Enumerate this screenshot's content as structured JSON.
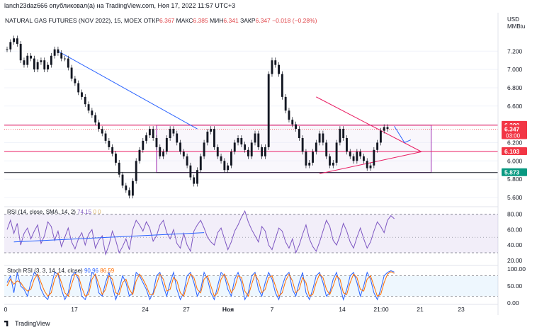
{
  "header": {
    "author_line": "lanch23daz666 опубликовал(а) на TradingView.com, Ноя 17, 2022 11:57 UTC+3"
  },
  "legend": {
    "symbol": "NATURAL GAS FUTURES (NOV 2022), 15, MOEX",
    "open_label": "ОТКР",
    "open": "6.367",
    "high_label": "МАКС",
    "high": "6.385",
    "low_label": "МИН",
    "low": "6.341",
    "close_label": "ЗАКР",
    "close": "6.347",
    "change": "−0.018 (−0.28%)"
  },
  "currency": {
    "line1": "USD",
    "line2": "MMBtu"
  },
  "rsi_legend": {
    "text": "RSI (14, close, SMA, 14, 2)",
    "v1": "74.15",
    "v2": "0",
    "v3": "0"
  },
  "stoch_legend": {
    "text": "Stoch RSI (3, 3, 14, 14, close)",
    "v1": "90.96",
    "v2": "86.59"
  },
  "footer": {
    "brand": "TradingView"
  },
  "colors": {
    "up": "#26a69a",
    "down": "#ef5350",
    "rsi": "#7e57c2",
    "k": "#2962ff",
    "d": "#ff6d00",
    "trend": "#2962ff",
    "resistance": "#e91e63"
  },
  "chart_data": [
    {
      "type": "line",
      "panel": "price",
      "title": "NATURAL GAS FUTURES (NOV 2022), 15, MOEX",
      "ylabel": "USD MMBtu",
      "y_ticks": [
        5.6,
        5.8,
        6.0,
        6.2,
        6.4,
        6.6,
        6.8,
        7.0,
        7.2
      ],
      "ylim": [
        5.53,
        7.45
      ],
      "x_ticks": [
        "0",
        "17",
        "24",
        "27",
        "Ноя",
        "7",
        "14",
        "21:00",
        "21",
        "23"
      ],
      "price_labels": [
        {
          "value": 6.39,
          "text": "6.390",
          "color": "#f23645"
        },
        {
          "value": 6.347,
          "text": "6.347",
          "sub": "03:00",
          "color": "#f23645"
        },
        {
          "value": 6.103,
          "text": "6.103",
          "color": "#f23645"
        },
        {
          "value": 5.873,
          "text": "5.873",
          "color": "#089981"
        }
      ],
      "series": [
        {
          "values": [
            7.22,
            7.3,
            7.34,
            7.28,
            7.1,
            7.05,
            7.15,
            7.12,
            7.0,
            7.08,
            7.1,
            7.0,
            7.05,
            7.15,
            7.22,
            7.18,
            7.12,
            7.12,
            7.02,
            6.9,
            6.85,
            6.75,
            6.7,
            6.62,
            6.55,
            6.5,
            6.42,
            6.35,
            6.3,
            6.22,
            6.15,
            6.08,
            5.98,
            5.85,
            5.73,
            5.68,
            5.62,
            5.78,
            6.0,
            6.12,
            6.22,
            6.28,
            6.35,
            6.25,
            6.15,
            6.05,
            6.1,
            6.25,
            6.35,
            6.3,
            6.2,
            6.1,
            6.05,
            5.95,
            5.82,
            5.75,
            5.9,
            6.05,
            6.2,
            6.32,
            6.35,
            6.15,
            6.05,
            6.0,
            5.9,
            5.95,
            6.1,
            6.2,
            6.25,
            6.18,
            6.12,
            6.05,
            6.2,
            6.3,
            6.15,
            6.05,
            6.15,
            6.95,
            7.1,
            7.05,
            6.95,
            6.7,
            6.55,
            6.45,
            6.4,
            6.35,
            6.25,
            6.1,
            5.95,
            5.98,
            6.1,
            6.2,
            6.3,
            6.2,
            6.05,
            5.95,
            5.98,
            6.2,
            6.35,
            6.25,
            6.1,
            6.05,
            6.0,
            6.1,
            6.05,
            6.0,
            5.92,
            5.95,
            6.12,
            6.2,
            6.33,
            6.37,
            6.35
          ]
        }
      ]
    },
    {
      "type": "line",
      "panel": "rsi",
      "ylim": [
        20,
        85
      ],
      "y_ticks": [
        20,
        40,
        60,
        80
      ],
      "series": [
        {
          "name": "RSI (14, close, SMA, 14, 2)",
          "values": [
            60,
            72,
            55,
            68,
            40,
            55,
            62,
            48,
            58,
            66,
            42,
            52,
            70,
            64,
            46,
            58,
            38,
            50,
            62,
            44,
            35,
            48,
            56,
            40,
            54,
            60,
            36,
            46,
            52,
            28,
            40,
            58,
            46,
            30,
            38,
            48,
            34,
            60,
            72,
            66,
            58,
            70,
            62,
            45,
            52,
            66,
            72,
            56,
            48,
            60,
            42,
            36,
            55,
            40,
            32,
            58,
            66,
            72,
            62,
            50,
            44,
            40,
            56,
            62,
            48,
            34,
            44,
            58,
            66,
            76,
            84,
            70,
            60,
            52,
            44,
            64,
            58,
            40,
            34,
            48,
            62,
            58,
            44,
            36,
            48,
            30,
            40,
            54,
            66,
            48,
            38,
            32,
            44,
            58,
            72,
            64,
            46,
            40,
            52,
            68,
            58,
            44,
            36,
            50,
            62,
            48,
            36,
            44,
            58,
            70,
            64,
            56,
            72,
            78,
            74
          ]
        }
      ]
    },
    {
      "type": "line",
      "panel": "stoch_rsi",
      "ylim": [
        0,
        100
      ],
      "y_ticks": [
        0,
        50,
        100
      ],
      "series": [
        {
          "name": "K",
          "values": [
            60,
            80,
            30,
            90,
            50,
            40,
            20,
            60,
            90,
            80,
            40,
            20,
            10,
            50,
            90,
            85,
            40,
            10,
            30,
            80,
            90,
            70,
            20,
            10,
            40,
            90,
            80,
            30,
            20,
            60,
            90,
            50,
            10,
            40,
            80,
            60,
            20,
            30,
            90,
            80,
            60,
            40,
            10,
            30,
            80,
            90,
            50,
            20,
            60,
            90,
            40,
            10,
            30,
            80,
            90,
            60,
            20,
            40,
            90,
            70,
            30,
            10,
            50,
            90,
            80,
            40,
            20,
            70,
            90,
            60,
            10,
            30,
            80,
            90,
            40,
            20,
            60,
            90,
            70,
            30,
            10,
            50,
            80,
            90,
            40,
            20,
            60,
            90,
            30,
            10,
            40,
            80,
            90,
            60,
            20,
            30,
            70,
            90,
            50,
            10,
            40,
            80,
            90,
            60,
            20,
            50,
            90,
            70,
            30,
            10,
            40,
            80,
            90,
            95,
            91
          ]
        },
        {
          "name": "D",
          "values": [
            50,
            70,
            55,
            65,
            60,
            45,
            35,
            40,
            70,
            85,
            60,
            35,
            20,
            30,
            70,
            88,
            60,
            30,
            20,
            55,
            85,
            80,
            45,
            20,
            25,
            70,
            85,
            55,
            25,
            40,
            80,
            70,
            30,
            25,
            60,
            70,
            40,
            25,
            65,
            85,
            70,
            50,
            25,
            25,
            55,
            85,
            70,
            35,
            40,
            75,
            65,
            30,
            20,
            55,
            85,
            75,
            40,
            30,
            70,
            80,
            50,
            20,
            30,
            70,
            85,
            60,
            30,
            45,
            80,
            75,
            35,
            20,
            55,
            85,
            65,
            30,
            40,
            75,
            80,
            50,
            20,
            30,
            65,
            85,
            65,
            30,
            40,
            75,
            60,
            20,
            25,
            60,
            85,
            75,
            40,
            25,
            50,
            80,
            70,
            30,
            25,
            60,
            85,
            75,
            40,
            35,
            70,
            80,
            50,
            20,
            25,
            60,
            85,
            92,
            87
          ]
        }
      ]
    }
  ]
}
